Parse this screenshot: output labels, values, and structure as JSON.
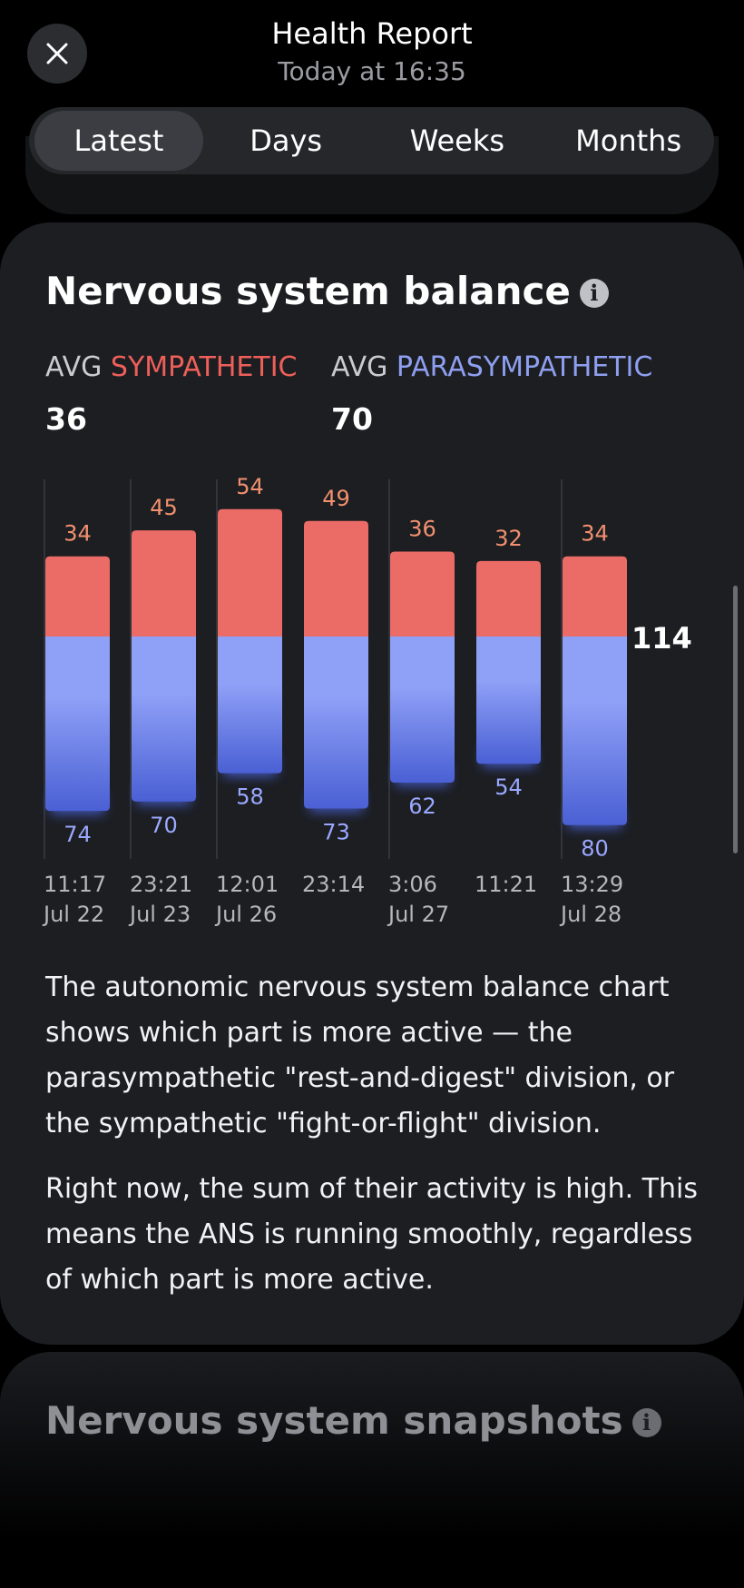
{
  "header": {
    "title": "Health Report",
    "subtitle": "Today at 16:35"
  },
  "tabs": [
    "Latest",
    "Days",
    "Weeks",
    "Months"
  ],
  "selected_tab": 0,
  "card": {
    "title": "Nervous system balance",
    "averages": [
      {
        "prefix": "AVG",
        "label": "SYMPATHETIC",
        "value": 36,
        "color": "#ef5f5a"
      },
      {
        "prefix": "AVG",
        "label": "PARASYMPATHETIC",
        "value": 70,
        "color": "#8f9ff0"
      }
    ],
    "chart_data": {
      "type": "diverging-bar",
      "times": [
        "11:17",
        "23:21",
        "12:01",
        "23:14",
        "3:06",
        "11:21",
        "13:29"
      ],
      "dates": [
        "Jul 22",
        "Jul 23",
        "Jul 26",
        null,
        "Jul 27",
        null,
        "Jul 28"
      ],
      "series": [
        {
          "name": "SYMPATHETIC",
          "color": "#eb6b66",
          "label_color": "#f2906f",
          "values": [
            34,
            45,
            54,
            49,
            36,
            32,
            34
          ]
        },
        {
          "name": "PARASYMPATHETIC",
          "color": "#8fa0f7",
          "color_bottom": "#4a60d4",
          "label_color": "#9aa8ff",
          "values": [
            74,
            70,
            58,
            73,
            62,
            54,
            80
          ]
        }
      ],
      "scale_label": 114
    },
    "paragraphs": [
      "The autonomic nervous system balance chart shows which part is more active — the parasympathetic \"rest-and-digest\" division, or the sympathetic \"fight-or-flight\" division.",
      "Right now, the sum of their activity is high. This means the ANS is running smoothly, regardless of which part is more active."
    ]
  },
  "next_card": {
    "title": "Nervous system snapshots"
  }
}
